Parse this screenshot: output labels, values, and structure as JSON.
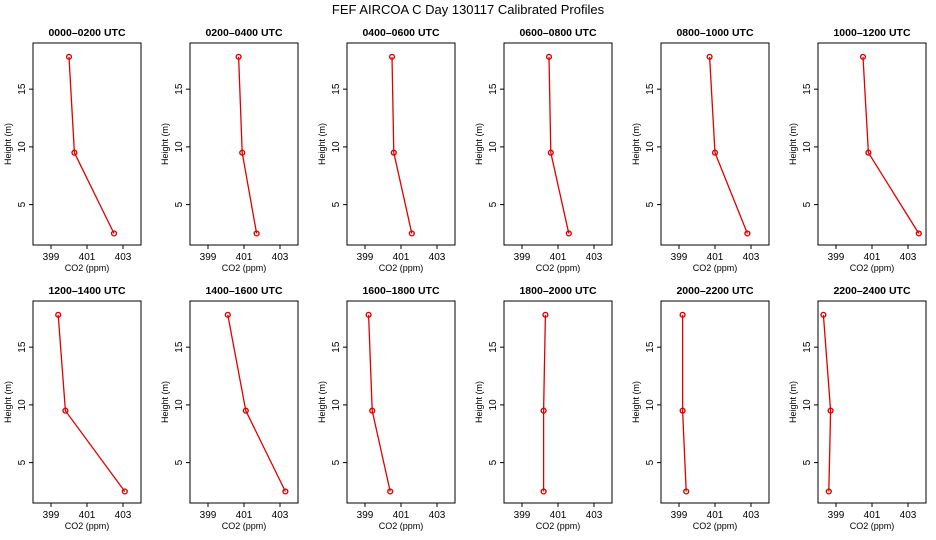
{
  "figure": {
    "title": "FEF AIRCOA C  Day 130117  Calibrated Profiles"
  },
  "chart_data": [
    {
      "type": "line",
      "title": "0000–0200 UTC",
      "xlabel": "CO2 (ppm)",
      "ylabel": "Height (m)",
      "xlim": [
        398,
        404
      ],
      "ylim": [
        1.5,
        19
      ],
      "xticks": [
        399,
        401,
        403
      ],
      "yticks": [
        5,
        10,
        15
      ],
      "color": "#e00000",
      "points": [
        {
          "x": 400.0,
          "y": 17.8
        },
        {
          "x": 400.3,
          "y": 9.5
        },
        {
          "x": 402.5,
          "y": 2.5
        }
      ]
    },
    {
      "type": "line",
      "title": "0200–0400 UTC",
      "xlabel": "CO2 (ppm)",
      "ylabel": "Height (m)",
      "xlim": [
        398,
        404
      ],
      "ylim": [
        1.5,
        19
      ],
      "xticks": [
        399,
        401,
        403
      ],
      "yticks": [
        5,
        10,
        15
      ],
      "color": "#e00000",
      "points": [
        {
          "x": 400.7,
          "y": 17.8
        },
        {
          "x": 400.9,
          "y": 9.5
        },
        {
          "x": 401.7,
          "y": 2.5
        }
      ]
    },
    {
      "type": "line",
      "title": "0400–0600 UTC",
      "xlabel": "CO2 (ppm)",
      "ylabel": "Height (m)",
      "xlim": [
        398,
        404
      ],
      "ylim": [
        1.5,
        19
      ],
      "xticks": [
        399,
        401,
        403
      ],
      "yticks": [
        5,
        10,
        15
      ],
      "color": "#e00000",
      "points": [
        {
          "x": 400.5,
          "y": 17.8
        },
        {
          "x": 400.6,
          "y": 9.5
        },
        {
          "x": 401.6,
          "y": 2.5
        }
      ]
    },
    {
      "type": "line",
      "title": "0600–0800 UTC",
      "xlabel": "CO2 (ppm)",
      "ylabel": "Height (m)",
      "xlim": [
        398,
        404
      ],
      "ylim": [
        1.5,
        19
      ],
      "xticks": [
        399,
        401,
        403
      ],
      "yticks": [
        5,
        10,
        15
      ],
      "color": "#e00000",
      "points": [
        {
          "x": 400.5,
          "y": 17.8
        },
        {
          "x": 400.6,
          "y": 9.5
        },
        {
          "x": 401.6,
          "y": 2.5
        }
      ]
    },
    {
      "type": "line",
      "title": "0800–1000 UTC",
      "xlabel": "CO2 (ppm)",
      "ylabel": "Height (m)",
      "xlim": [
        398,
        404
      ],
      "ylim": [
        1.5,
        19
      ],
      "xticks": [
        399,
        401,
        403
      ],
      "yticks": [
        5,
        10,
        15
      ],
      "color": "#e00000",
      "points": [
        {
          "x": 400.7,
          "y": 17.8
        },
        {
          "x": 401.0,
          "y": 9.5
        },
        {
          "x": 402.8,
          "y": 2.5
        }
      ]
    },
    {
      "type": "line",
      "title": "1000–1200 UTC",
      "xlabel": "CO2 (ppm)",
      "ylabel": "Height (m)",
      "xlim": [
        398,
        404
      ],
      "ylim": [
        1.5,
        19
      ],
      "xticks": [
        399,
        401,
        403
      ],
      "yticks": [
        5,
        10,
        15
      ],
      "color": "#e00000",
      "points": [
        {
          "x": 400.5,
          "y": 17.8
        },
        {
          "x": 400.8,
          "y": 9.5
        },
        {
          "x": 403.6,
          "y": 2.5
        }
      ]
    },
    {
      "type": "line",
      "title": "1200–1400 UTC",
      "xlabel": "CO2 (ppm)",
      "ylabel": "Height (m)",
      "xlim": [
        398,
        404
      ],
      "ylim": [
        1.5,
        19
      ],
      "xticks": [
        399,
        401,
        403
      ],
      "yticks": [
        5,
        10,
        15
      ],
      "color": "#e00000",
      "points": [
        {
          "x": 399.4,
          "y": 17.8
        },
        {
          "x": 399.8,
          "y": 9.5
        },
        {
          "x": 403.1,
          "y": 2.5
        }
      ]
    },
    {
      "type": "line",
      "title": "1400–1600 UTC",
      "xlabel": "CO2 (ppm)",
      "ylabel": "Height (m)",
      "xlim": [
        398,
        404
      ],
      "ylim": [
        1.5,
        19
      ],
      "xticks": [
        399,
        401,
        403
      ],
      "yticks": [
        5,
        10,
        15
      ],
      "color": "#e00000",
      "points": [
        {
          "x": 400.1,
          "y": 17.8
        },
        {
          "x": 401.1,
          "y": 9.5
        },
        {
          "x": 403.3,
          "y": 2.5
        }
      ]
    },
    {
      "type": "line",
      "title": "1600–1800 UTC",
      "xlabel": "CO2 (ppm)",
      "ylabel": "Height (m)",
      "xlim": [
        398,
        404
      ],
      "ylim": [
        1.5,
        19
      ],
      "xticks": [
        399,
        401,
        403
      ],
      "yticks": [
        5,
        10,
        15
      ],
      "color": "#e00000",
      "points": [
        {
          "x": 399.2,
          "y": 17.8
        },
        {
          "x": 399.4,
          "y": 9.5
        },
        {
          "x": 400.4,
          "y": 2.5
        }
      ]
    },
    {
      "type": "line",
      "title": "1800–2000 UTC",
      "xlabel": "CO2 (ppm)",
      "ylabel": "Height (m)",
      "xlim": [
        398,
        404
      ],
      "ylim": [
        1.5,
        19
      ],
      "xticks": [
        399,
        401,
        403
      ],
      "yticks": [
        5,
        10,
        15
      ],
      "color": "#e00000",
      "points": [
        {
          "x": 400.3,
          "y": 17.8
        },
        {
          "x": 400.2,
          "y": 9.5
        },
        {
          "x": 400.2,
          "y": 2.5
        }
      ]
    },
    {
      "type": "line",
      "title": "2000–2200 UTC",
      "xlabel": "CO2 (ppm)",
      "ylabel": "Height (m)",
      "xlim": [
        398,
        404
      ],
      "ylim": [
        1.5,
        19
      ],
      "xticks": [
        399,
        401,
        403
      ],
      "yticks": [
        5,
        10,
        15
      ],
      "color": "#e00000",
      "points": [
        {
          "x": 399.2,
          "y": 17.8
        },
        {
          "x": 399.2,
          "y": 9.5
        },
        {
          "x": 399.4,
          "y": 2.5
        }
      ]
    },
    {
      "type": "line",
      "title": "2200–2400 UTC",
      "xlabel": "CO2 (ppm)",
      "ylabel": "Height (m)",
      "xlim": [
        398,
        404
      ],
      "ylim": [
        1.5,
        19
      ],
      "xticks": [
        399,
        401,
        403
      ],
      "yticks": [
        5,
        10,
        15
      ],
      "color": "#e00000",
      "points": [
        {
          "x": 398.3,
          "y": 17.8
        },
        {
          "x": 398.7,
          "y": 9.5
        },
        {
          "x": 398.6,
          "y": 2.5
        }
      ]
    }
  ]
}
